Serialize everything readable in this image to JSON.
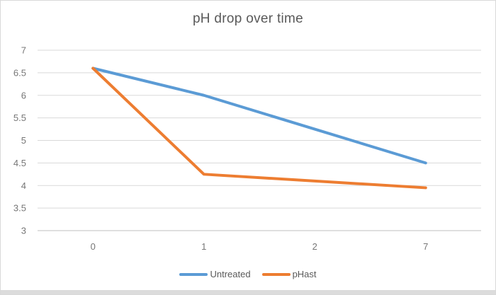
{
  "window": {
    "background": "#ffffff",
    "border_color": "#d9d9d9",
    "bottom_edge_color": "#dcdcdc"
  },
  "chart_data": {
    "type": "line",
    "title": "pH drop over time",
    "categories": [
      "0",
      "1",
      "2",
      "7"
    ],
    "series": [
      {
        "name": "Untreated",
        "color": "#5B9BD5",
        "values": [
          6.6,
          6.0,
          5.25,
          4.5
        ]
      },
      {
        "name": "pHast",
        "color": "#ED7D31",
        "values": [
          6.6,
          4.25,
          4.1,
          3.95
        ]
      }
    ],
    "xlabel": "",
    "ylabel": "",
    "ylim": [
      3,
      7
    ],
    "ytick_step": 0.5,
    "ytick_labels": [
      "7",
      "6.5",
      "6",
      "5.5",
      "5",
      "4.5",
      "4",
      "3.5",
      "3"
    ],
    "grid": true,
    "legend_position": "bottom",
    "styles": {
      "title_color": "#595959",
      "tick_label_color": "#767676",
      "gridline_color": "#d9d9d9",
      "axis_line_color": "#bfbfbf",
      "legend_text_color": "#595959",
      "line_width": 4
    }
  }
}
